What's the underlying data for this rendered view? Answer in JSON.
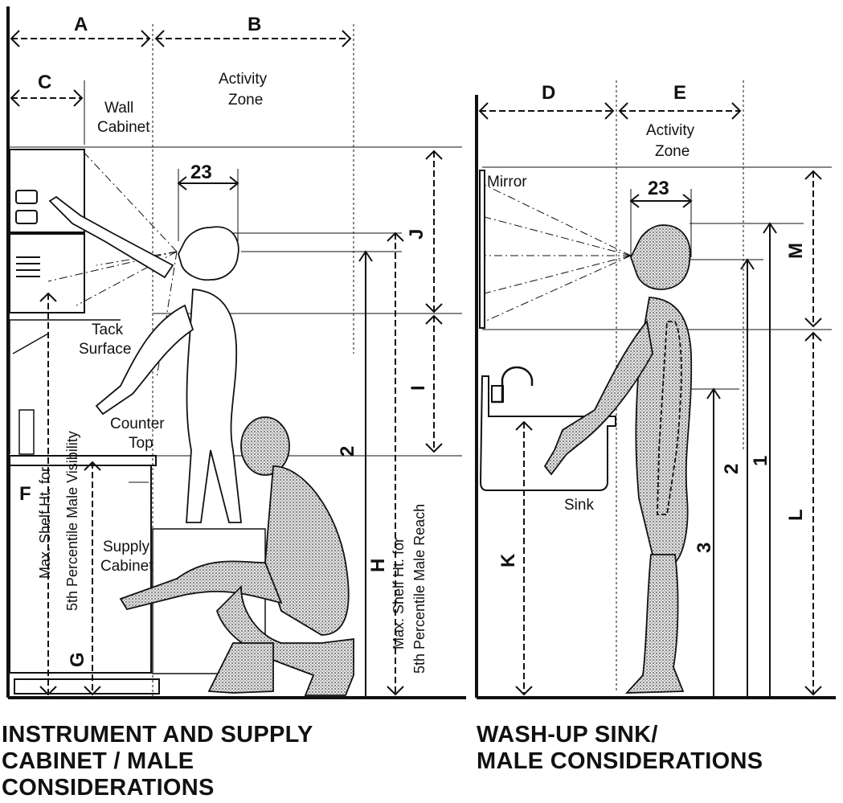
{
  "left_panel": {
    "dims": {
      "A": "A",
      "B": "B",
      "C": "C",
      "F": "F",
      "G": "G",
      "H": "H",
      "I": "I",
      "J": "J",
      "two": "2",
      "s23": "23"
    },
    "labels": {
      "activity_zone_1": "Activity",
      "activity_zone_2": "Zone",
      "wall_cabinet_1": "Wall",
      "wall_cabinet_2": "Cabinet",
      "tack_surface_1": "Tack",
      "tack_surface_2": "Surface",
      "counter_top_1": "Counter",
      "counter_top_2": "Top",
      "supply_cabinet_1": "Supply",
      "supply_cabinet_2": "Cabinet",
      "vis_1": "Max. Shelf Ht. for",
      "vis_2": "5th Percentile Male Visibility",
      "reach_1": "Max. Shelf Ht. for",
      "reach_2": "5th Percentile Male Reach"
    },
    "caption": [
      "INSTRUMENT AND SUPPLY",
      "CABINET / MALE",
      "CONSIDERATIONS"
    ]
  },
  "right_panel": {
    "dims": {
      "D": "D",
      "E": "E",
      "K": "K",
      "L": "L",
      "M": "M",
      "one": "1",
      "two": "2",
      "three": "3",
      "s23": "23"
    },
    "labels": {
      "activity_zone_1": "Activity",
      "activity_zone_2": "Zone",
      "mirror": "Mirror",
      "sink": "Sink"
    },
    "caption": [
      "WASH-UP SINK/",
      "MALE CONSIDERATIONS"
    ]
  }
}
